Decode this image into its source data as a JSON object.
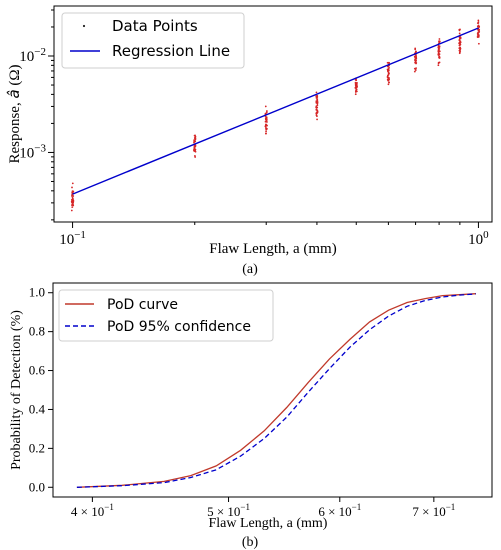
{
  "chart_data": [
    {
      "type": "scatter",
      "panel_label": "(a)",
      "xlabel": "Flaw Length, a (mm)",
      "ylabel_prefix": "Response, ",
      "ylabel_symbol": "â",
      "ylabel_suffix": " (Ω)",
      "xscale": "log",
      "yscale": "log",
      "xlim": [
        0.09,
        1.08
      ],
      "ylim": [
        0.00019,
        0.033
      ],
      "x_ticks": [
        {
          "value": 0.1,
          "label": "10",
          "exp": "−1"
        },
        {
          "value": 1.0,
          "label": "10",
          "exp": "0"
        }
      ],
      "y_ticks": [
        {
          "value": 0.001,
          "label": "10",
          "exp": "−3"
        },
        {
          "value": 0.01,
          "label": "10",
          "exp": "−2"
        }
      ],
      "legend_position": "top-left",
      "series": [
        {
          "name": "Data Points",
          "kind": "scatter",
          "color": "#d62728",
          "x": [
            0.1,
            0.2,
            0.3,
            0.4,
            0.5,
            0.6,
            0.7,
            0.8,
            0.9,
            1.0
          ],
          "y_center": [
            0.00035,
            0.0012,
            0.0022,
            0.0031,
            0.0049,
            0.0068,
            0.0095,
            0.0115,
            0.0145,
            0.018
          ],
          "y_spread": [
            [
              0.00025,
              0.00055
            ],
            [
              0.0008,
              0.0015
            ],
            [
              0.0014,
              0.003
            ],
            [
              0.002,
              0.0042
            ],
            [
              0.0036,
              0.0065
            ],
            [
              0.0045,
              0.0085
            ],
            [
              0.0062,
              0.012
            ],
            [
              0.0075,
              0.015
            ],
            [
              0.0095,
              0.021
            ],
            [
              0.012,
              0.024
            ]
          ]
        },
        {
          "name": "Regression Line",
          "kind": "line",
          "color": "#0000cc",
          "x": [
            0.1,
            1.0
          ],
          "y": [
            0.00037,
            0.0195
          ]
        }
      ]
    },
    {
      "type": "line",
      "panel_label": "(b)",
      "xlabel": "Flaw Length, a (mm)",
      "ylabel": "Probability of Detection (%)",
      "xscale": "log",
      "xlim": [
        0.375,
        0.77
      ],
      "ylim": [
        -0.05,
        1.05
      ],
      "x_ticks": [
        {
          "value": 0.4,
          "label": "4 × 10",
          "exp": "−1"
        },
        {
          "value": 0.5,
          "label": "5 × 10",
          "exp": "−1"
        },
        {
          "value": 0.6,
          "label": "6 × 10",
          "exp": "−1"
        },
        {
          "value": 0.7,
          "label": "7 × 10",
          "exp": "−1"
        }
      ],
      "y_ticks": [
        {
          "value": 0.0,
          "label": "0.0"
        },
        {
          "value": 0.2,
          "label": "0.2"
        },
        {
          "value": 0.4,
          "label": "0.4"
        },
        {
          "value": 0.6,
          "label": "0.6"
        },
        {
          "value": 0.8,
          "label": "0.8"
        },
        {
          "value": 1.0,
          "label": "1.0"
        }
      ],
      "legend_position": "top-left",
      "series": [
        {
          "name": "PoD curve",
          "color": "#c0392b",
          "dash": "solid",
          "x": [
            0.39,
            0.42,
            0.45,
            0.47,
            0.49,
            0.51,
            0.53,
            0.55,
            0.57,
            0.59,
            0.61,
            0.63,
            0.65,
            0.67,
            0.69,
            0.71,
            0.73,
            0.75
          ],
          "y": [
            0.0,
            0.01,
            0.03,
            0.06,
            0.11,
            0.19,
            0.29,
            0.41,
            0.54,
            0.66,
            0.76,
            0.85,
            0.91,
            0.95,
            0.97,
            0.985,
            0.99,
            0.995
          ]
        },
        {
          "name": "PoD 95% confidence",
          "color": "#0000cc",
          "dash": "dashed",
          "x": [
            0.39,
            0.42,
            0.45,
            0.47,
            0.49,
            0.51,
            0.53,
            0.55,
            0.57,
            0.59,
            0.61,
            0.63,
            0.65,
            0.67,
            0.69,
            0.71,
            0.73,
            0.75
          ],
          "y": [
            0.0,
            0.008,
            0.024,
            0.05,
            0.09,
            0.16,
            0.25,
            0.36,
            0.49,
            0.61,
            0.72,
            0.81,
            0.88,
            0.93,
            0.96,
            0.978,
            0.988,
            0.994
          ]
        }
      ]
    }
  ]
}
